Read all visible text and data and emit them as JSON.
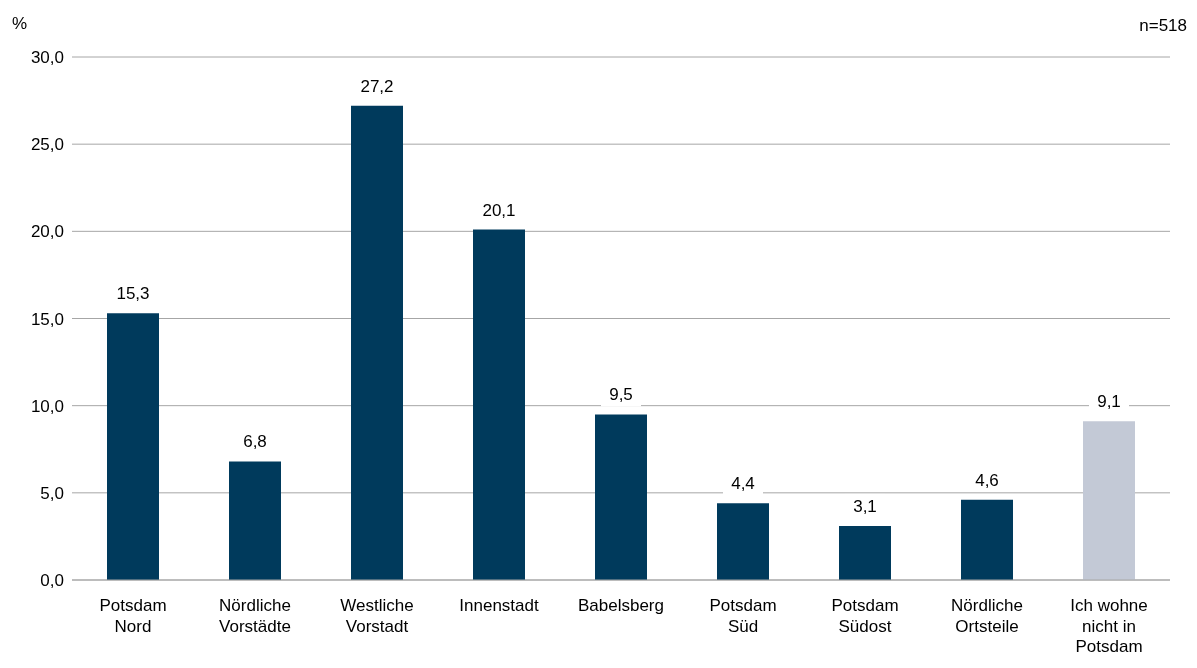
{
  "chart_data": {
    "type": "bar",
    "ylabel": "%",
    "annotations": [
      "n=518"
    ],
    "categories": [
      "Potsdam\nNord",
      "Nördliche\nVorstädte",
      "Westliche\nVorstadt",
      "Innenstadt",
      "Babelsberg",
      "Potsdam\nSüd",
      "Potsdam\nSüdost",
      "Nördliche\nOrtsteile",
      "Ich wohne\nnicht in\nPotsdam"
    ],
    "values": [
      15.3,
      6.8,
      27.2,
      20.1,
      9.5,
      4.4,
      3.1,
      4.6,
      9.1
    ],
    "colors": [
      "#003a5c",
      "#003a5c",
      "#003a5c",
      "#003a5c",
      "#003a5c",
      "#003a5c",
      "#003a5c",
      "#003a5c",
      "#c3c9d6"
    ],
    "value_labels": [
      "15,3",
      "6,8",
      "27,2",
      "20,1",
      "9,5",
      "4,4",
      "3,1",
      "4,6",
      "9,1"
    ],
    "ylim": [
      0,
      30
    ],
    "yticks": [
      {
        "value": 0,
        "label": "0,0"
      },
      {
        "value": 5,
        "label": "5,0"
      },
      {
        "value": 10,
        "label": "10,0"
      },
      {
        "value": 15,
        "label": "15,0"
      },
      {
        "value": 20,
        "label": "20,0"
      },
      {
        "value": 25,
        "label": "25,0"
      },
      {
        "value": 30,
        "label": "30,0"
      }
    ],
    "grid": "y"
  }
}
